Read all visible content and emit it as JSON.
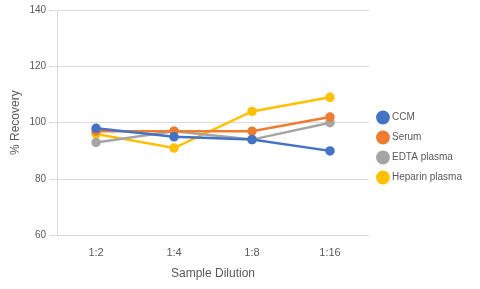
{
  "chart_data": {
    "type": "line",
    "xlabel": "Sample Dilution",
    "ylabel": "% Recovery",
    "categories": [
      "1:2",
      "1:4",
      "1:8",
      "1:16"
    ],
    "series": [
      {
        "name": "CCM",
        "color": "#4472c4",
        "values": [
          98,
          95,
          94,
          90
        ]
      },
      {
        "name": "Serum",
        "color": "#ed7d31",
        "values": [
          97,
          97,
          97,
          102
        ]
      },
      {
        "name": "EDTA plasma",
        "color": "#a5a5a5",
        "values": [
          93,
          97,
          94,
          100
        ]
      },
      {
        "name": "Heparin plasma",
        "color": "#ffc000",
        "values": [
          96,
          91,
          104,
          109
        ]
      }
    ],
    "ylim": [
      60,
      140
    ],
    "yticks": [
      60,
      80,
      100,
      120,
      140
    ],
    "grid": true,
    "legend": "right",
    "marker": "circle"
  }
}
